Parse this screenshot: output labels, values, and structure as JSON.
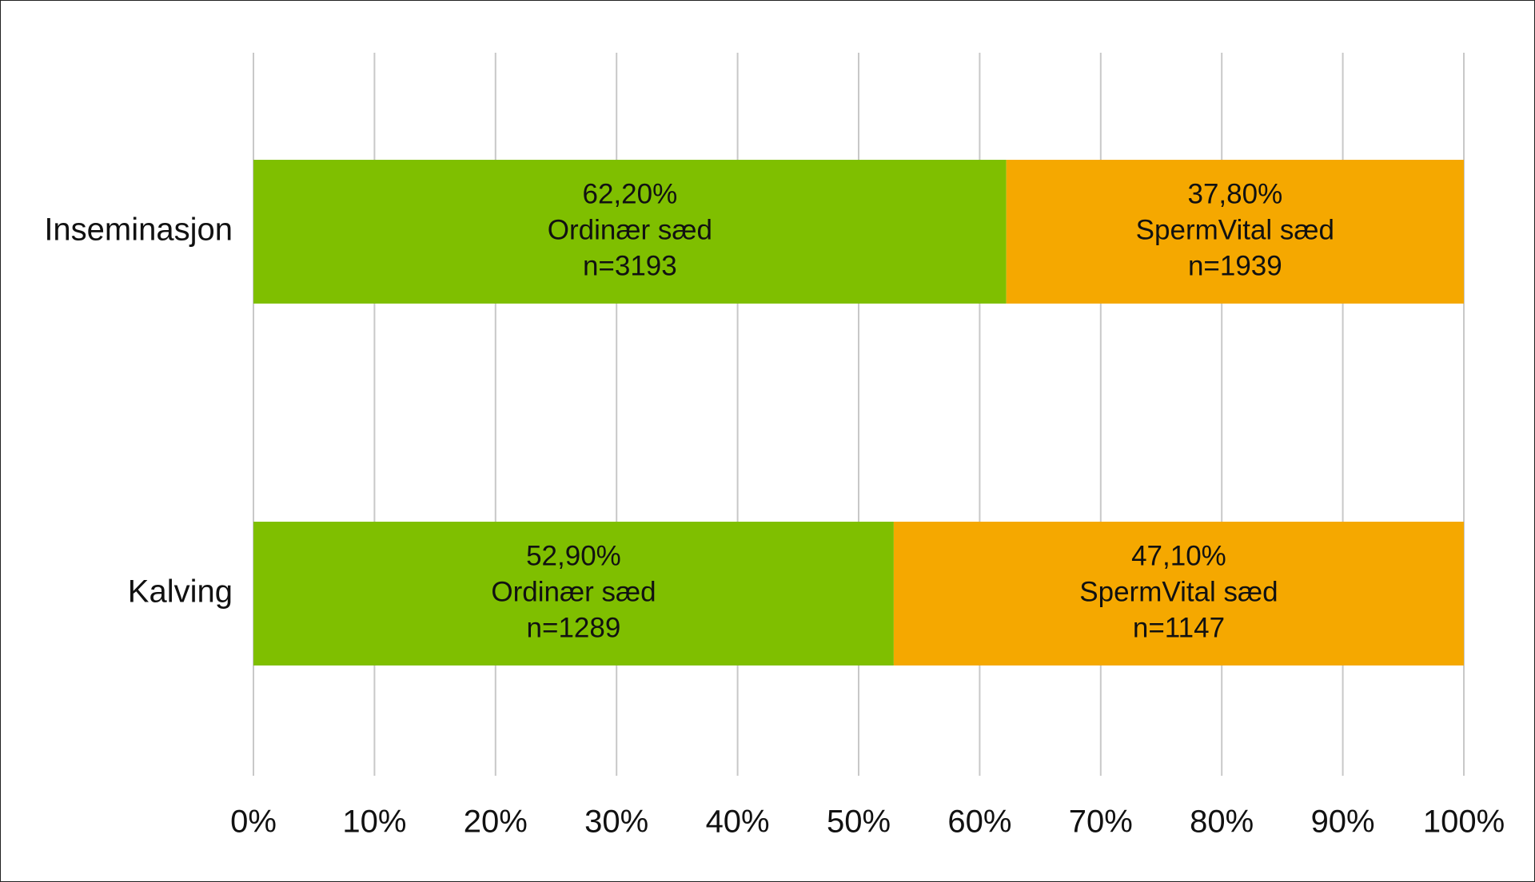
{
  "chart_data": {
    "type": "bar",
    "orientation": "horizontal",
    "stacked": true,
    "percent_stacked": true,
    "categories": [
      "Inseminasjon",
      "Kalving"
    ],
    "series": [
      {
        "values": [
          62.2,
          52.9
        ],
        "color": "#7fbf00",
        "labels": [
          [
            "62,20%",
            "Ordinær sæd",
            "n=3193"
          ],
          [
            "52,90%",
            "Ordinær sæd",
            "n=1289"
          ]
        ]
      },
      {
        "values": [
          37.8,
          47.1
        ],
        "color": "#f5a800",
        "labels": [
          [
            "37,80%",
            "SpermVital sæd",
            "n=1939"
          ],
          [
            "47,10%",
            "SpermVital sæd",
            "n=1147"
          ]
        ]
      }
    ],
    "xlim": [
      0,
      100
    ],
    "x_ticks": [
      "0%",
      "10%",
      "20%",
      "30%",
      "40%",
      "50%",
      "60%",
      "70%",
      "80%",
      "90%",
      "100%"
    ],
    "grid": "vertical",
    "grid_color": "#c8c8c8",
    "legend": "none"
  }
}
